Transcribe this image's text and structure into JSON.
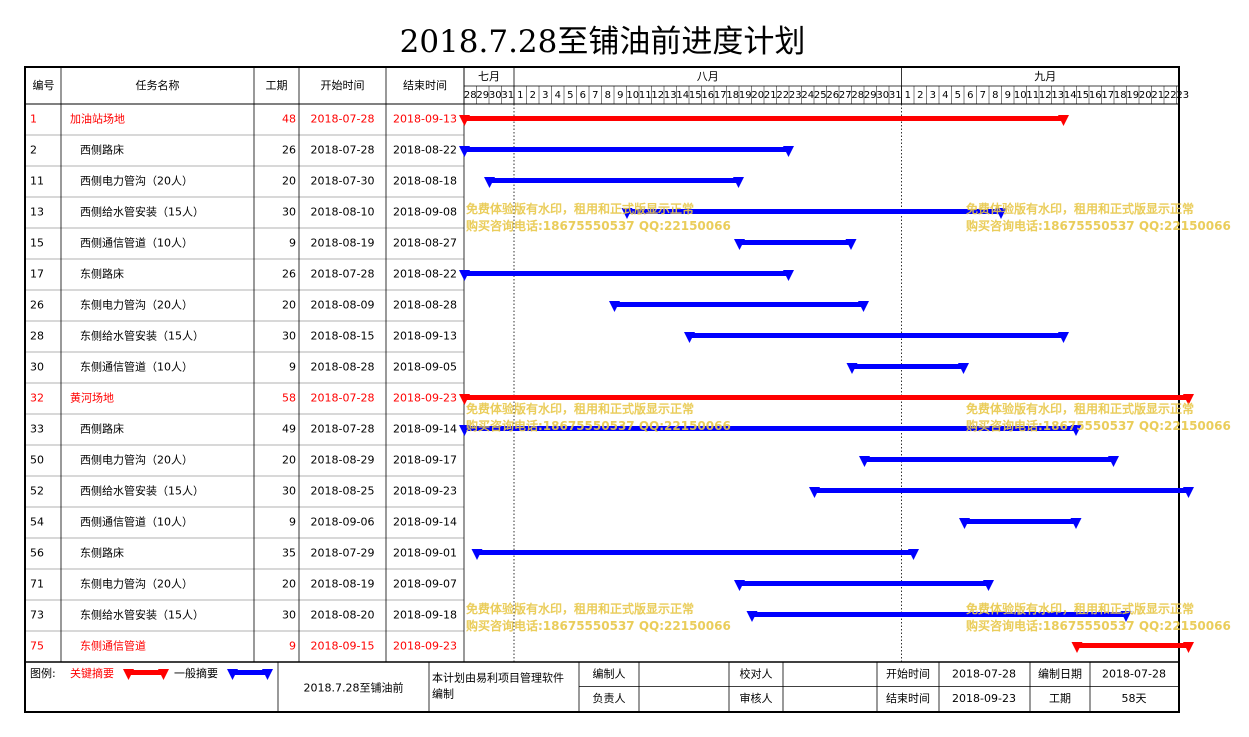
{
  "title": "2018.7.28至铺油前进度计划",
  "headers": {
    "id": "编号",
    "name": "任务名称",
    "duration": "工期",
    "start": "开始时间",
    "end": "结束时间"
  },
  "months": [
    {
      "label": "七月",
      "days": [
        "28",
        "29",
        "30",
        "31"
      ]
    },
    {
      "label": "八月",
      "days": [
        "1",
        "2",
        "3",
        "4",
        "5",
        "6",
        "7",
        "8",
        "9",
        "10",
        "11",
        "12",
        "13",
        "14",
        "15",
        "16",
        "17",
        "18",
        "19",
        "20",
        "21",
        "22",
        "23",
        "24",
        "25",
        "26",
        "27",
        "28",
        "29",
        "30",
        "31"
      ]
    },
    {
      "label": "九月",
      "days": [
        "1",
        "2",
        "3",
        "4",
        "5",
        "6",
        "7",
        "8",
        "9",
        "10",
        "11",
        "12",
        "13",
        "14",
        "15",
        "16",
        "17",
        "18",
        "19",
        "20",
        "21",
        "22",
        "23"
      ]
    }
  ],
  "chart_data": {
    "type": "gantt",
    "timeline_start": "2018-07-28",
    "timeline_end": "2018-09-23",
    "tasks": [
      {
        "id": "1",
        "name": "加油站场地",
        "duration": "48",
        "start": "2018-07-28",
        "end": "2018-09-13",
        "critical": true,
        "summary": true
      },
      {
        "id": "2",
        "name": "西侧路床",
        "duration": "26",
        "start": "2018-07-28",
        "end": "2018-08-22",
        "critical": false,
        "summary": false
      },
      {
        "id": "11",
        "name": "西侧电力管沟（20人）",
        "duration": "20",
        "start": "2018-07-30",
        "end": "2018-08-18",
        "critical": false,
        "summary": false
      },
      {
        "id": "13",
        "name": "西侧给水管安装（15人）",
        "duration": "30",
        "start": "2018-08-10",
        "end": "2018-09-08",
        "critical": false,
        "summary": false
      },
      {
        "id": "15",
        "name": "西侧通信管道（10人）",
        "duration": "9",
        "start": "2018-08-19",
        "end": "2018-08-27",
        "critical": false,
        "summary": false
      },
      {
        "id": "17",
        "name": "东侧路床",
        "duration": "26",
        "start": "2018-07-28",
        "end": "2018-08-22",
        "critical": false,
        "summary": false
      },
      {
        "id": "26",
        "name": "东侧电力管沟（20人）",
        "duration": "20",
        "start": "2018-08-09",
        "end": "2018-08-28",
        "critical": false,
        "summary": false
      },
      {
        "id": "28",
        "name": "东侧给水管安装（15人）",
        "duration": "30",
        "start": "2018-08-15",
        "end": "2018-09-13",
        "critical": false,
        "summary": false
      },
      {
        "id": "30",
        "name": "东侧通信管道（10人）",
        "duration": "9",
        "start": "2018-08-28",
        "end": "2018-09-05",
        "critical": false,
        "summary": false
      },
      {
        "id": "32",
        "name": "黄河场地",
        "duration": "58",
        "start": "2018-07-28",
        "end": "2018-09-23",
        "critical": true,
        "summary": true
      },
      {
        "id": "33",
        "name": "西侧路床",
        "duration": "49",
        "start": "2018-07-28",
        "end": "2018-09-14",
        "critical": false,
        "summary": false
      },
      {
        "id": "50",
        "name": "西侧电力管沟（20人）",
        "duration": "20",
        "start": "2018-08-29",
        "end": "2018-09-17",
        "critical": false,
        "summary": false
      },
      {
        "id": "52",
        "name": "西侧给水管安装（15人）",
        "duration": "30",
        "start": "2018-08-25",
        "end": "2018-09-23",
        "critical": false,
        "summary": false
      },
      {
        "id": "54",
        "name": "西侧通信管道（10人）",
        "duration": "9",
        "start": "2018-09-06",
        "end": "2018-09-14",
        "critical": false,
        "summary": false
      },
      {
        "id": "56",
        "name": "东侧路床",
        "duration": "35",
        "start": "2018-07-29",
        "end": "2018-09-01",
        "critical": false,
        "summary": false
      },
      {
        "id": "71",
        "name": "东侧电力管沟（20人）",
        "duration": "20",
        "start": "2018-08-19",
        "end": "2018-09-07",
        "critical": false,
        "summary": false
      },
      {
        "id": "73",
        "name": "东侧给水管安装（15人）",
        "duration": "30",
        "start": "2018-08-20",
        "end": "2018-09-18",
        "critical": false,
        "summary": false
      },
      {
        "id": "75",
        "name": "东侧通信管道",
        "duration": "9",
        "start": "2018-09-15",
        "end": "2018-09-23",
        "critical": true,
        "summary": false
      }
    ]
  },
  "colors": {
    "critical": "#ff0000",
    "normal": "#0000ff",
    "watermark": "#e8c84a"
  },
  "legend": {
    "label": "图例:",
    "critical": "关键摘要",
    "normal": "一般摘要"
  },
  "footer": {
    "plan_name": "2018.7.28至铺油前",
    "software_note": "本计划由易利项目管理软件编制",
    "compiler_label": "编制人",
    "compiler_value": "",
    "checker_label": "校对人",
    "checker_value": "",
    "owner_label": "负责人",
    "owner_value": "",
    "reviewer_label": "审核人",
    "reviewer_value": "",
    "start_label": "开始时间",
    "start_value": "2018-07-28",
    "compile_date_label": "编制日期",
    "compile_date_value": "2018-07-28",
    "end_label": "结束时间",
    "end_value": "2018-09-23",
    "duration_label": "工期",
    "duration_value": "58天"
  },
  "watermark": {
    "line1": "免费体验版有水印，租用和正式版显示正常",
    "line2": "购买咨询电话:18675550537 QQ:22150066"
  }
}
